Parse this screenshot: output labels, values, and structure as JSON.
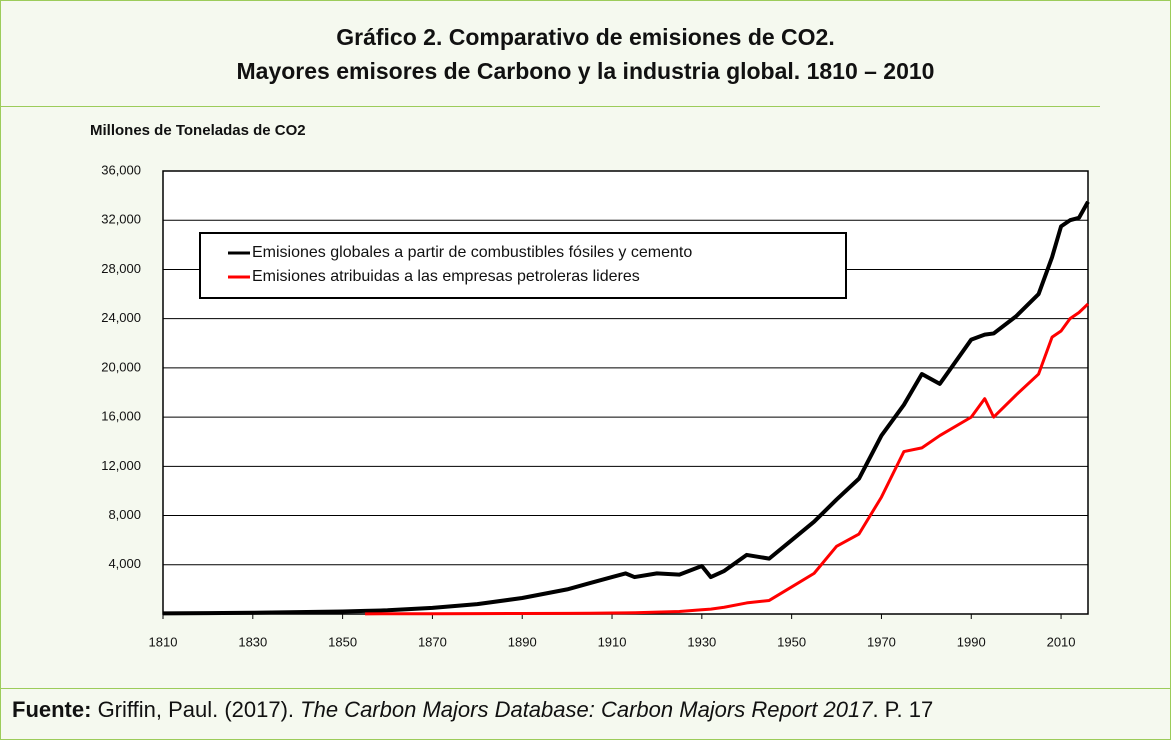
{
  "header": {
    "title_line1": "Gráfico 2. Comparativo de emisiones de CO2.",
    "title_line2": "Mayores emisores de Carbono y la industria global. 1810 – 2010"
  },
  "chart_data": {
    "type": "line",
    "ylabel": "Millones de Toneladas de CO2",
    "x": [
      1810,
      1820,
      1830,
      1840,
      1850,
      1855,
      1860,
      1870,
      1880,
      1890,
      1900,
      1905,
      1910,
      1913,
      1915,
      1920,
      1925,
      1930,
      1932,
      1935,
      1940,
      1945,
      1950,
      1955,
      1960,
      1965,
      1970,
      1975,
      1979,
      1983,
      1990,
      1993,
      1995,
      2000,
      2005,
      2008,
      2010,
      2012,
      2014,
      2016
    ],
    "series": [
      {
        "name": "Emisiones globales a partir de combustibles fósiles y cemento",
        "color": "#000000",
        "values": [
          50,
          70,
          100,
          150,
          200,
          250,
          300,
          500,
          800,
          1300,
          2000,
          2500,
          3000,
          3300,
          3000,
          3300,
          3200,
          3900,
          3000,
          3500,
          4800,
          4500,
          6000,
          7500,
          9300,
          11000,
          14500,
          17000,
          19500,
          18700,
          22300,
          22700,
          22800,
          24200,
          26000,
          29000,
          31500,
          32000,
          32200,
          33500
        ]
      },
      {
        "name": "Emisiones atribuidas a las empresas petroleras lideres",
        "color": "#ff0000",
        "values": [
          null,
          null,
          null,
          null,
          null,
          10,
          20,
          25,
          30,
          40,
          50,
          60,
          80,
          90,
          100,
          150,
          200,
          350,
          400,
          550,
          900,
          1100,
          2200,
          3300,
          5500,
          6500,
          9500,
          13200,
          13500,
          14500,
          16000,
          17500,
          16000,
          17800,
          19500,
          22500,
          23000,
          24000,
          24500,
          25200
        ]
      }
    ],
    "xlim": [
      1810,
      2016
    ],
    "xticks": [
      1810,
      1830,
      1850,
      1870,
      1890,
      1910,
      1930,
      1950,
      1970,
      1990,
      2010
    ],
    "ylim": [
      0,
      36000
    ],
    "yticks": [
      {
        "value": 4000,
        "label": "4,000"
      },
      {
        "value": 8000,
        "label": "8,000"
      },
      {
        "value": 12000,
        "label": "12,000"
      },
      {
        "value": 16000,
        "label": "16,000"
      },
      {
        "value": 20000,
        "label": "20,000"
      },
      {
        "value": 24000,
        "label": "24,000"
      },
      {
        "value": 28000,
        "label": "28,000"
      },
      {
        "value": 32000,
        "label": "32,000"
      },
      {
        "value": 36000,
        "label": "36,000"
      }
    ],
    "grid": true,
    "legend": "upper left"
  },
  "source": {
    "label": "Fuente:",
    "authors": " Griffin, Paul. (2017). ",
    "work": "The Carbon Majors Database: Carbon Majors Report 2017",
    "page": ". P. 17"
  }
}
